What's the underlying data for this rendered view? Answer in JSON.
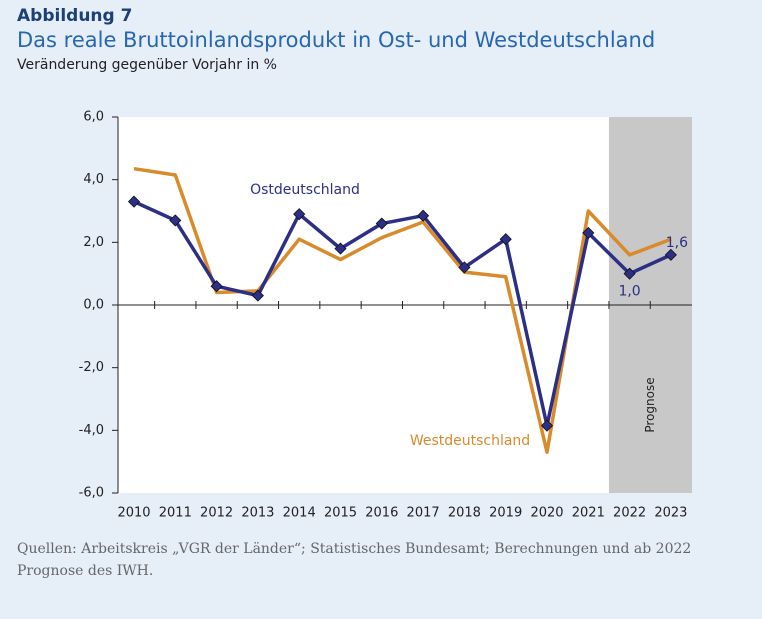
{
  "chart_data": {
    "type": "line",
    "label": "Abbildung 7",
    "title": "Das reale Bruttoinlandsprodukt in Ost- und Westdeutschland",
    "subtitle": "Veränderung gegenüber Vorjahr in %",
    "categories": [
      "2010",
      "2011",
      "2012",
      "2013",
      "2014",
      "2015",
      "2016",
      "2017",
      "2018",
      "2019",
      "2020",
      "2021",
      "2022",
      "2023"
    ],
    "series": [
      {
        "name": "Westdeutschland",
        "color": "#d98a2b",
        "values": [
          4.35,
          4.15,
          0.4,
          0.45,
          2.1,
          1.45,
          2.15,
          2.65,
          1.05,
          0.9,
          -4.7,
          3.0,
          1.6,
          2.1
        ]
      },
      {
        "name": "Ostdeutschland",
        "color": "#2b2f86",
        "marker": "diamond",
        "values": [
          3.3,
          2.7,
          0.6,
          0.3,
          2.9,
          1.8,
          2.6,
          2.85,
          1.2,
          2.1,
          -3.85,
          2.3,
          1.0,
          1.6
        ],
        "value_labels": [
          null,
          null,
          null,
          null,
          null,
          null,
          null,
          null,
          null,
          null,
          null,
          null,
          "1,0",
          "1,6"
        ]
      }
    ],
    "ylim": [
      -6,
      6
    ],
    "yticks": [
      {
        "value": -6,
        "label": "-6,0"
      },
      {
        "value": -4,
        "label": "-4,0"
      },
      {
        "value": -2,
        "label": "-2,0"
      },
      {
        "value": 0,
        "label": "0,0"
      },
      {
        "value": 2,
        "label": "2,0"
      },
      {
        "value": 4,
        "label": "4,0"
      },
      {
        "value": 6,
        "label": "6,0"
      }
    ],
    "forecast_start": "2022",
    "forecast_label": "Prognose",
    "source": "Quellen: Arbeitskreis „VGR der Länder“; Statistisches Bundesamt; Berechnungen und ab 2022 Prognose des IWH."
  }
}
